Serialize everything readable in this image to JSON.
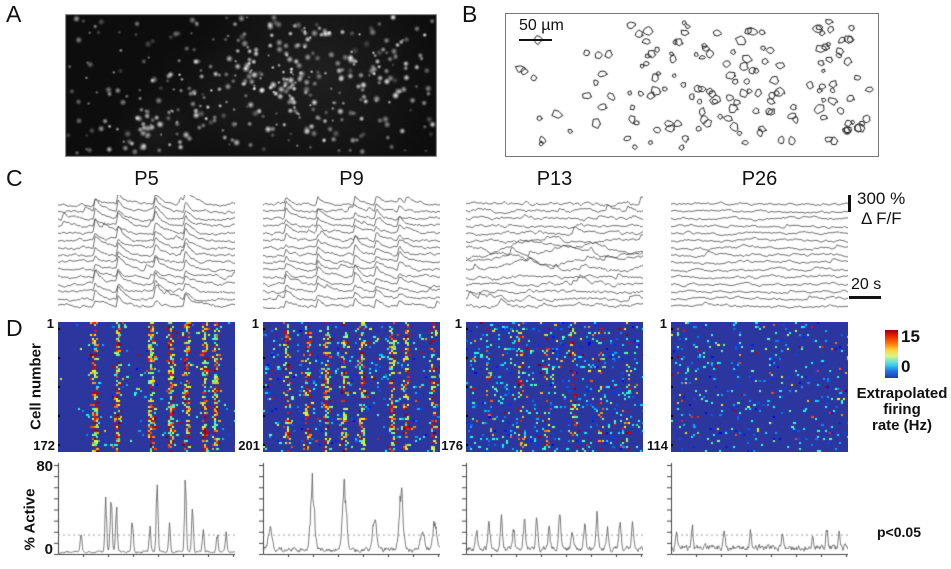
{
  "panels": {
    "a": {
      "label": "A",
      "description": "Fluorescence image of fura-2 loaded cells"
    },
    "b": {
      "label": "B",
      "scale_bar": "50 µm",
      "description": "Contour map of detected cell bodies"
    },
    "c": {
      "label": "C",
      "amplitude_scale": "300 %",
      "amplitude_unit": "Δ F/F",
      "time_scale": "20 s"
    },
    "d": {
      "label": "D"
    }
  },
  "columns": [
    {
      "title": "P5",
      "first_cell": "1",
      "last_cell": "172"
    },
    {
      "title": "P9",
      "first_cell": "1",
      "last_cell": "201"
    },
    {
      "title": "P13",
      "first_cell": "1",
      "last_cell": "176"
    },
    {
      "title": "P26",
      "first_cell": "1",
      "last_cell": "114"
    }
  ],
  "colors": {
    "heatmap_background": "#2b379f",
    "trace_line": "#3f3f3f",
    "activity_line": "#5a5a5a",
    "threshold_line": "#999999"
  },
  "chart_data": [
    {
      "type": "heatmap",
      "panel": "D top row — extrapolated firing rate rasters",
      "ylabel": "Cell number",
      "colorbar": {
        "min": 0,
        "max": 15,
        "label": "Extrapolated firing rate (Hz)",
        "label_lines": [
          "Extrapolated",
          "firing",
          "rate (Hz)"
        ]
      },
      "columns": [
        {
          "age": "P5",
          "n_cells": 172,
          "event_columns": [
            0.2,
            0.33,
            0.52,
            0.63,
            0.72,
            0.82,
            0.88
          ],
          "background_density": 0.022,
          "stripe_strength": 0.6,
          "row_streaks": 0,
          "sparse_left": true
        },
        {
          "age": "P9",
          "n_cells": 201,
          "event_columns": [
            0.13,
            0.24,
            0.35,
            0.45,
            0.55,
            0.72,
            0.8,
            0.95
          ],
          "background_density": 0.06,
          "stripe_strength": 0.42,
          "row_streaks": 8,
          "sparse_left": false
        },
        {
          "age": "P13",
          "n_cells": 176,
          "event_columns": [
            0.3,
            0.45,
            0.6,
            0.75,
            0.9
          ],
          "background_density": 0.085,
          "stripe_strength": 0.14,
          "row_streaks": 16,
          "sparse_left": false
        },
        {
          "age": "P26",
          "n_cells": 114,
          "event_columns": [],
          "background_density": 0.06,
          "stripe_strength": 0,
          "row_streaks": 0,
          "sparse_left": false
        }
      ]
    },
    {
      "type": "line",
      "panel": "D bottom row — percent of active cells over time",
      "ylabel": "% Active",
      "ylim": [
        0,
        80
      ],
      "threshold": {
        "label": "p<0.05",
        "value": 17
      },
      "series": [
        {
          "name": "P5",
          "baseline_noise": 2.5,
          "peak_width": 0.005,
          "peaks": [
            [
              0.13,
              16
            ],
            [
              0.27,
              46
            ],
            [
              0.3,
              52
            ],
            [
              0.33,
              40
            ],
            [
              0.42,
              30
            ],
            [
              0.52,
              20
            ],
            [
              0.56,
              60
            ],
            [
              0.63,
              22
            ],
            [
              0.72,
              68
            ],
            [
              0.76,
              38
            ],
            [
              0.82,
              20
            ],
            [
              0.9,
              16
            ],
            [
              0.95,
              18
            ]
          ]
        },
        {
          "name": "P9",
          "baseline_noise": 5,
          "peak_width": 0.011,
          "peaks": [
            [
              0.04,
              20
            ],
            [
              0.28,
              58
            ],
            [
              0.46,
              56
            ],
            [
              0.63,
              26
            ],
            [
              0.78,
              52
            ],
            [
              0.9,
              14
            ],
            [
              0.97,
              24
            ]
          ]
        },
        {
          "name": "P13",
          "baseline_noise": 6,
          "peak_width": 0.006,
          "peaks": [
            [
              0.06,
              14
            ],
            [
              0.13,
              22
            ],
            [
              0.2,
              28
            ],
            [
              0.27,
              18
            ],
            [
              0.33,
              24
            ],
            [
              0.4,
              26
            ],
            [
              0.47,
              18
            ],
            [
              0.53,
              28
            ],
            [
              0.6,
              16
            ],
            [
              0.67,
              24
            ],
            [
              0.74,
              30
            ],
            [
              0.8,
              18
            ],
            [
              0.87,
              26
            ],
            [
              0.94,
              22
            ]
          ]
        },
        {
          "name": "P26",
          "baseline_noise": 7,
          "peak_width": 0.005,
          "peaks": [
            [
              0.03,
              14
            ],
            [
              0.12,
              20
            ],
            [
              0.3,
              16
            ],
            [
              0.45,
              12
            ],
            [
              0.63,
              13
            ],
            [
              0.8,
              12
            ],
            [
              0.88,
              16
            ],
            [
              0.95,
              12
            ]
          ]
        }
      ]
    },
    {
      "type": "line",
      "panel": "C — calcium fluorescence traces",
      "n_traces_per_panel": 15,
      "scale": {
        "amplitude": "300 % Δ F/F",
        "time": "20 s"
      },
      "series": [
        {
          "name": "P5",
          "sync_events": [
            0.21,
            0.34,
            0.55,
            0.72
          ],
          "event_amp": 10,
          "extra_events": 2,
          "noise": 1.0,
          "messy_rows": []
        },
        {
          "name": "P9",
          "sync_events": [
            0.13,
            0.31,
            0.52,
            0.64,
            0.77
          ],
          "event_amp": 7,
          "extra_events": 2,
          "noise": 1.0,
          "messy_rows": []
        },
        {
          "name": "P13",
          "sync_events": [],
          "event_amp": 8,
          "extra_events": 5,
          "noise": 1.1,
          "messy_rows": [
            6,
            7,
            8,
            9
          ]
        },
        {
          "name": "P26",
          "sync_events": [],
          "event_amp": 3.5,
          "extra_events": 2,
          "noise": 0.85,
          "messy_rows": []
        }
      ]
    }
  ]
}
